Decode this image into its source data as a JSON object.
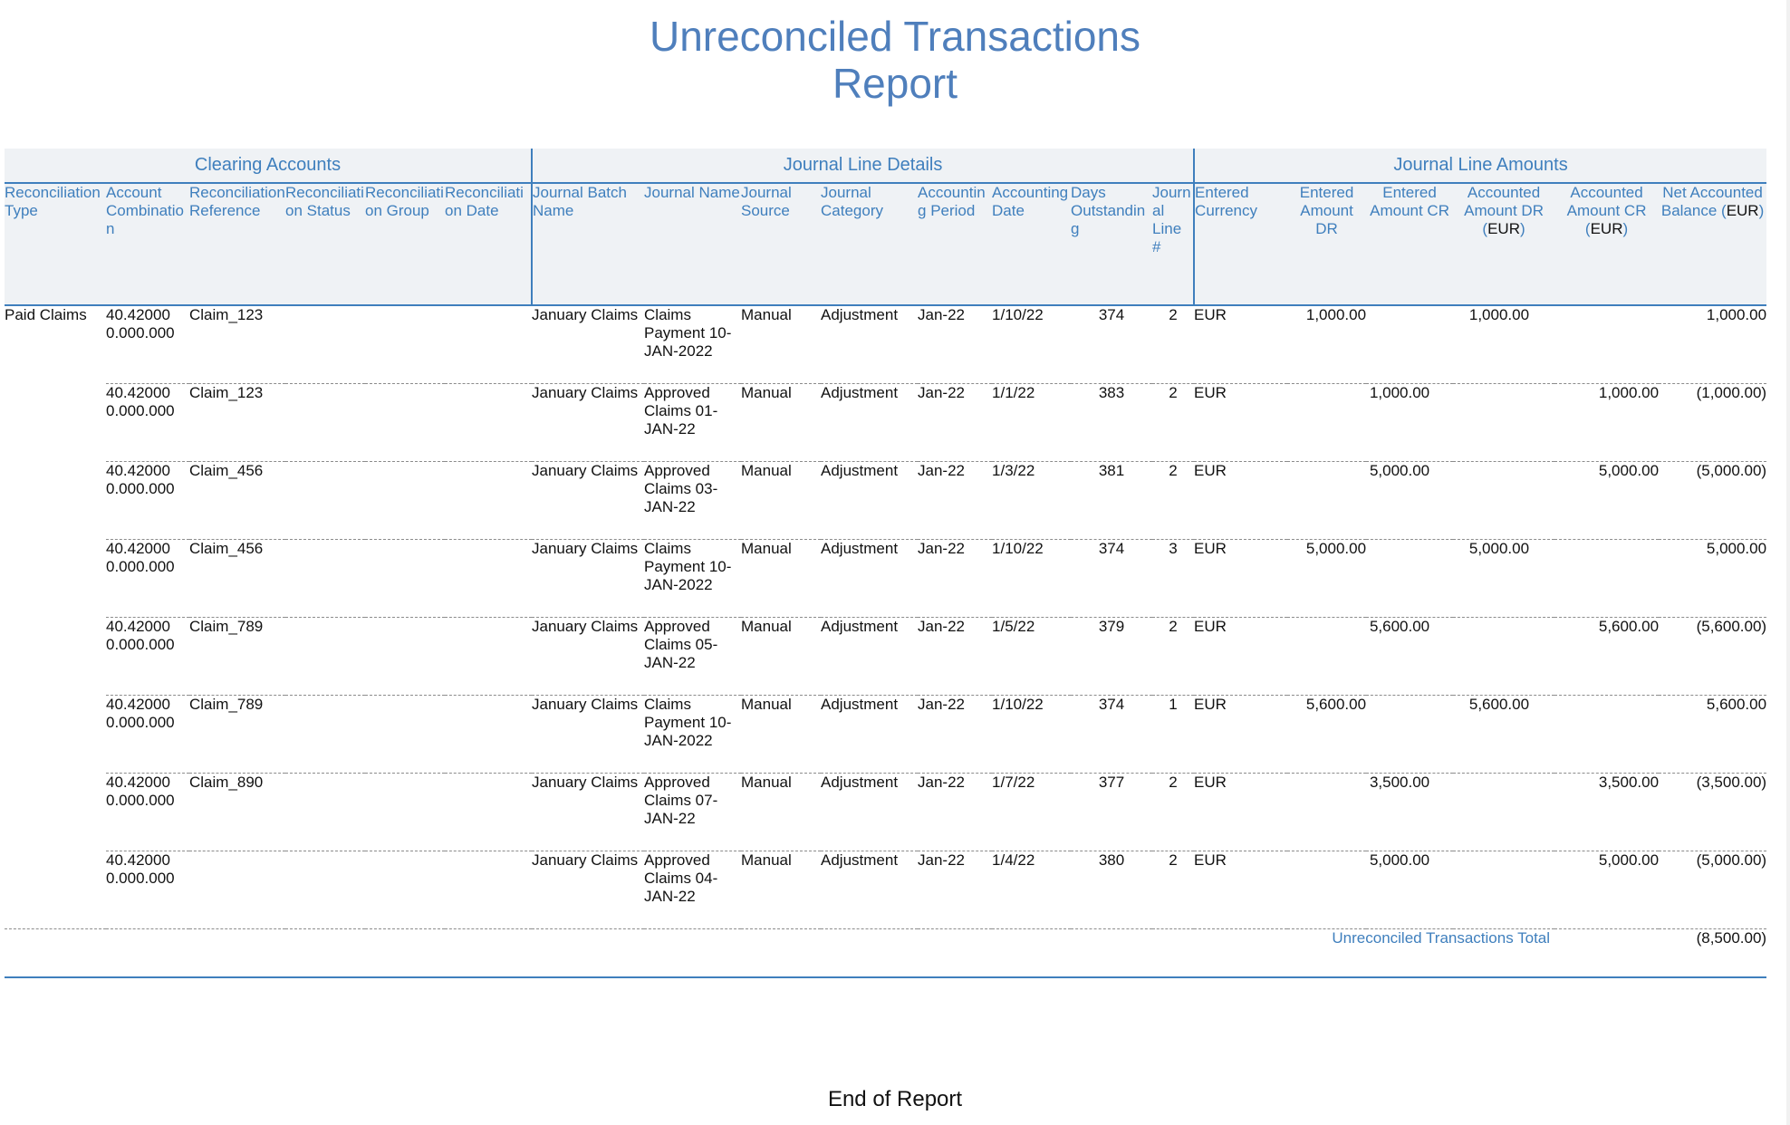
{
  "title": {
    "line1": "Unreconciled Transactions",
    "line2": "Report"
  },
  "groups": [
    {
      "label": "Clearing Accounts",
      "span": 6
    },
    {
      "label": "Journal Line Details",
      "span": 8
    },
    {
      "label": "Journal Line Amounts",
      "span": 6
    }
  ],
  "columns": [
    {
      "label": "Reconciliation Type"
    },
    {
      "label": "Account Combination"
    },
    {
      "label": "Reconciliation Reference"
    },
    {
      "label": "Reconciliation Status"
    },
    {
      "label": "Reconciliation Group"
    },
    {
      "label": "Reconciliation Date"
    },
    {
      "label": "Journal Batch Name"
    },
    {
      "label": "Journal Name"
    },
    {
      "label": "Journal Source"
    },
    {
      "label": "Journal Category"
    },
    {
      "label": "Accounting Period"
    },
    {
      "label": "Accounting Date"
    },
    {
      "label": "Days Outstanding"
    },
    {
      "label": "Journal Line #"
    },
    {
      "label": "Entered Currency"
    },
    {
      "label": "Entered Amount DR"
    },
    {
      "label": "Entered Amount CR"
    },
    {
      "label": "Accounted Amount DR",
      "currency": "EUR"
    },
    {
      "label": "Accounted Amount CR",
      "currency": "EUR"
    },
    {
      "label": "Net Accounted Balance",
      "currency": "EUR"
    }
  ],
  "rows": [
    {
      "rec_type": "Paid Claims",
      "account": "40.42000 0.000.000",
      "reference": "Claim_123",
      "status": "",
      "group": "",
      "date": "",
      "batch": "January Claims",
      "journal_name": "Claims Payment 10-JAN-2022",
      "source": "Manual",
      "category": "Adjustment",
      "period": "Jan-22",
      "acct_date": "1/10/22",
      "days": "374",
      "line": "2",
      "currency": "EUR",
      "entered_dr": "1,000.00",
      "entered_cr": "",
      "acct_dr": "1,000.00",
      "acct_cr": "",
      "net": "1,000.00"
    },
    {
      "rec_type": "",
      "account": "40.42000 0.000.000",
      "reference": "Claim_123",
      "status": "",
      "group": "",
      "date": "",
      "batch": "January Claims",
      "journal_name": "Approved Claims 01-JAN-22",
      "source": "Manual",
      "category": "Adjustment",
      "period": "Jan-22",
      "acct_date": "1/1/22",
      "days": "383",
      "line": "2",
      "currency": "EUR",
      "entered_dr": "",
      "entered_cr": "1,000.00",
      "acct_dr": "",
      "acct_cr": "1,000.00",
      "net": "(1,000.00)"
    },
    {
      "rec_type": "",
      "account": "40.42000 0.000.000",
      "reference": "Claim_456",
      "status": "",
      "group": "",
      "date": "",
      "batch": "January Claims",
      "journal_name": "Approved Claims 03-JAN-22",
      "source": "Manual",
      "category": "Adjustment",
      "period": "Jan-22",
      "acct_date": "1/3/22",
      "days": "381",
      "line": "2",
      "currency": "EUR",
      "entered_dr": "",
      "entered_cr": "5,000.00",
      "acct_dr": "",
      "acct_cr": "5,000.00",
      "net": "(5,000.00)"
    },
    {
      "rec_type": "",
      "account": "40.42000 0.000.000",
      "reference": "Claim_456",
      "status": "",
      "group": "",
      "date": "",
      "batch": "January Claims",
      "journal_name": "Claims Payment 10-JAN-2022",
      "source": "Manual",
      "category": "Adjustment",
      "period": "Jan-22",
      "acct_date": "1/10/22",
      "days": "374",
      "line": "3",
      "currency": "EUR",
      "entered_dr": "5,000.00",
      "entered_cr": "",
      "acct_dr": "5,000.00",
      "acct_cr": "",
      "net": "5,000.00"
    },
    {
      "rec_type": "",
      "account": "40.42000 0.000.000",
      "reference": "Claim_789",
      "status": "",
      "group": "",
      "date": "",
      "batch": "January Claims",
      "journal_name": "Approved Claims 05-JAN-22",
      "source": "Manual",
      "category": "Adjustment",
      "period": "Jan-22",
      "acct_date": "1/5/22",
      "days": "379",
      "line": "2",
      "currency": "EUR",
      "entered_dr": "",
      "entered_cr": "5,600.00",
      "acct_dr": "",
      "acct_cr": "5,600.00",
      "net": "(5,600.00)"
    },
    {
      "rec_type": "",
      "account": "40.42000 0.000.000",
      "reference": "Claim_789",
      "status": "",
      "group": "",
      "date": "",
      "batch": "January Claims",
      "journal_name": "Claims Payment 10-JAN-2022",
      "source": "Manual",
      "category": "Adjustment",
      "period": "Jan-22",
      "acct_date": "1/10/22",
      "days": "374",
      "line": "1",
      "currency": "EUR",
      "entered_dr": "5,600.00",
      "entered_cr": "",
      "acct_dr": "5,600.00",
      "acct_cr": "",
      "net": "5,600.00"
    },
    {
      "rec_type": "",
      "account": "40.42000 0.000.000",
      "reference": "Claim_890",
      "status": "",
      "group": "",
      "date": "",
      "batch": "January Claims",
      "journal_name": "Approved Claims 07-JAN-22",
      "source": "Manual",
      "category": "Adjustment",
      "period": "Jan-22",
      "acct_date": "1/7/22",
      "days": "377",
      "line": "2",
      "currency": "EUR",
      "entered_dr": "",
      "entered_cr": "3,500.00",
      "acct_dr": "",
      "acct_cr": "3,500.00",
      "net": "(3,500.00)"
    },
    {
      "rec_type": "",
      "account": "40.42000 0.000.000",
      "reference": "",
      "status": "",
      "group": "",
      "date": "",
      "batch": "January Claims",
      "journal_name": "Approved Claims 04-JAN-22",
      "source": "Manual",
      "category": "Adjustment",
      "period": "Jan-22",
      "acct_date": "1/4/22",
      "days": "380",
      "line": "2",
      "currency": "EUR",
      "entered_dr": "",
      "entered_cr": "5,000.00",
      "acct_dr": "",
      "acct_cr": "5,000.00",
      "net": "(5,000.00)"
    }
  ],
  "total": {
    "label": "Unreconciled Transactions Total",
    "value": "(8,500.00)"
  },
  "footer": "End of Report",
  "colors": {
    "accent": "#3f7fbd",
    "title": "#4f7fbc",
    "header_bg": "#eff2f5"
  }
}
